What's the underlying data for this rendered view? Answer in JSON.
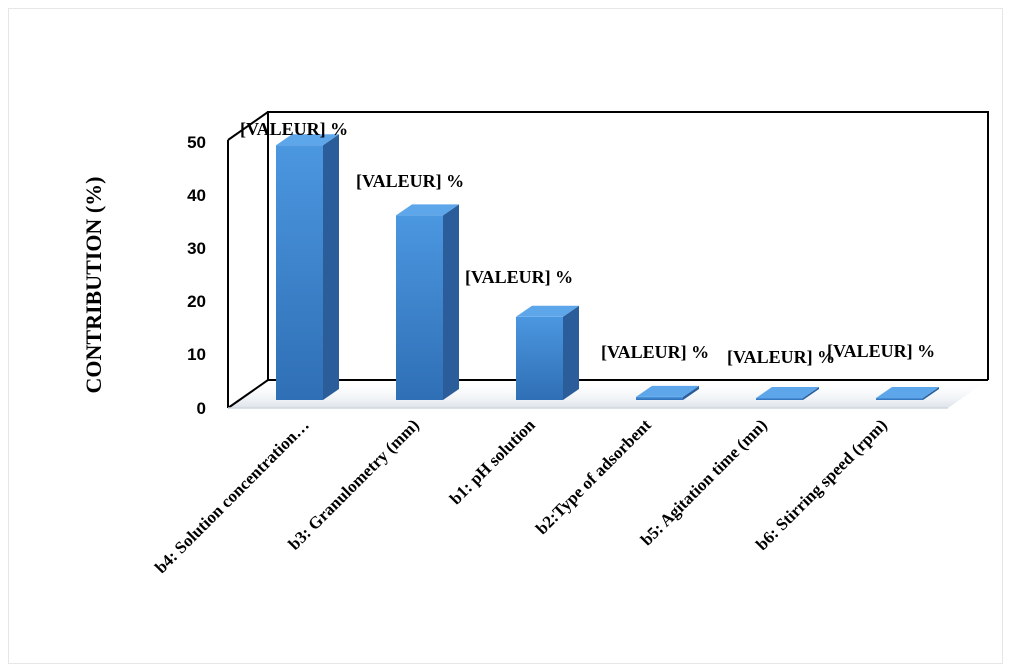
{
  "chart_data": {
    "type": "bar",
    "title": "",
    "xlabel": "",
    "ylabel": "CONTRIBUTION (%)",
    "ylim": [
      0,
      50
    ],
    "yticks": [
      "0",
      "10",
      "20",
      "30",
      "40",
      "50"
    ],
    "categories": [
      "b4: Solution concentration…",
      "b3: Granulometry (mm)",
      "b1: pH solution",
      "b2:Type of adsorbent",
      "b5: Agitation time  (mn)",
      "b6: Stirring speed (rpm)"
    ],
    "values": [
      49,
      35.5,
      16,
      0.6,
      0.1,
      0.1
    ],
    "data_labels": [
      "[VALEUR] %",
      "[VALEUR] %",
      "[VALEUR] %",
      "[VALEUR] %",
      "[VALEUR] %",
      "[VALEUR] %"
    ],
    "grid": false,
    "legend": "none",
    "bar_color": "#3d87d0"
  }
}
